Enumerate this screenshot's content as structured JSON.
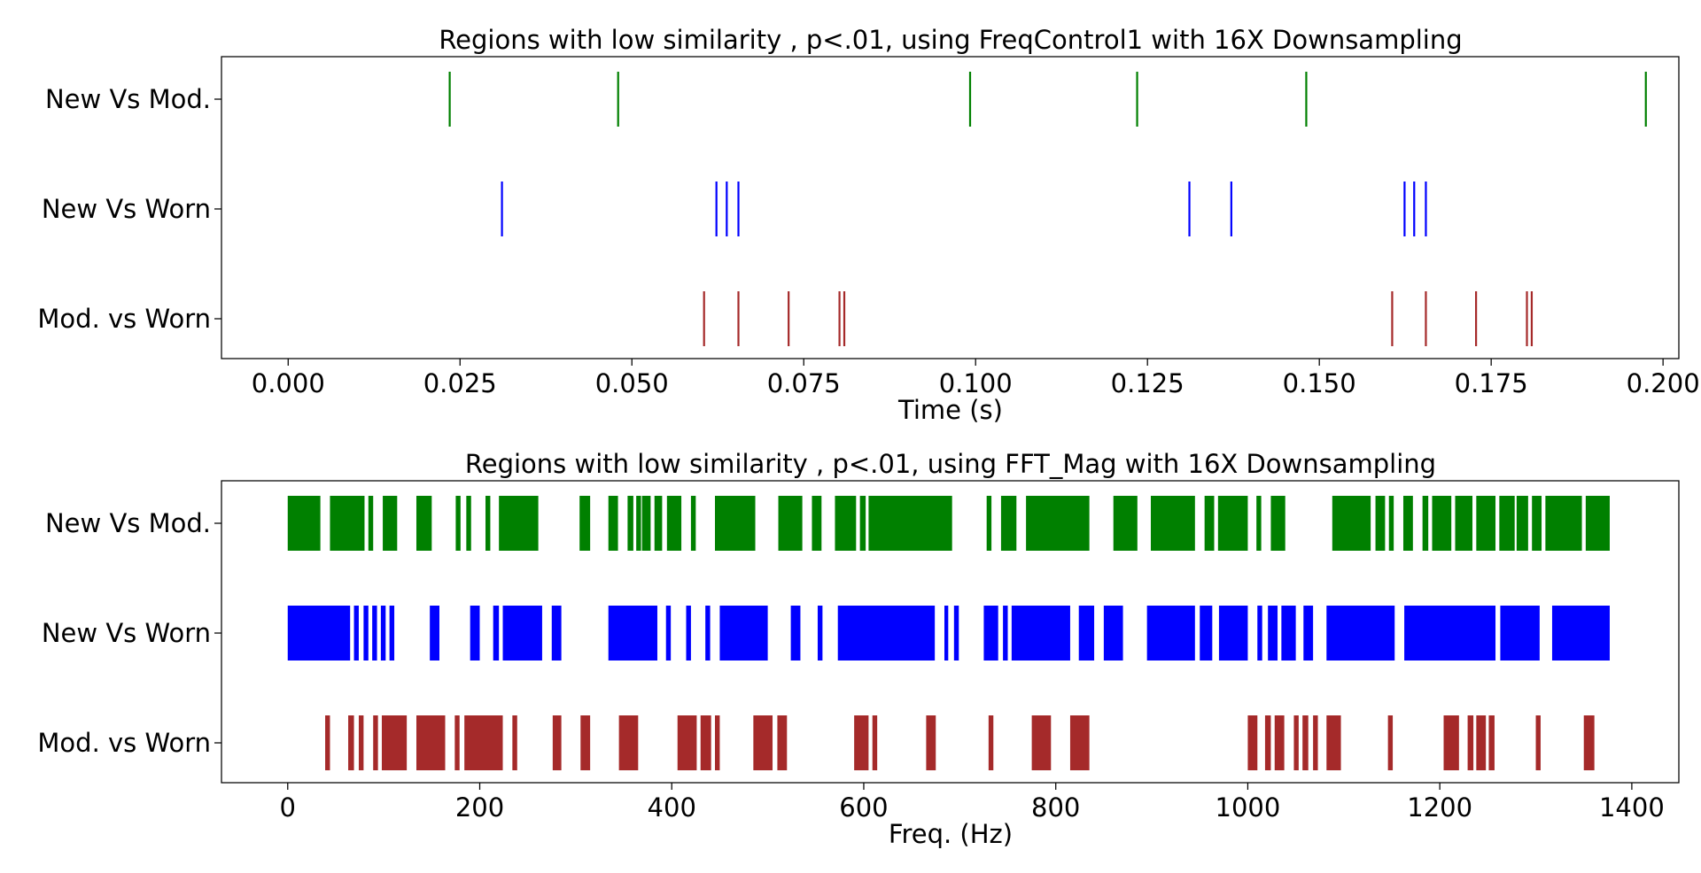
{
  "chart_data": [
    {
      "type": "eventplot",
      "title": "Regions with low similarity , p<.01, using FreqControl1 with 16X Downsampling",
      "xlabel": "Time (s)",
      "xlim": [
        -0.0097,
        0.2023
      ],
      "xticks": [
        0.0,
        0.025,
        0.05,
        0.075,
        0.1,
        0.125,
        0.15,
        0.175,
        0.2
      ],
      "xtick_labels": [
        "0.000",
        "0.025",
        "0.050",
        "0.075",
        "0.100",
        "0.125",
        "0.150",
        "0.175",
        "0.200"
      ],
      "series": [
        {
          "name": "New Vs Mod.",
          "color": "#008000",
          "events": [
            0.0235,
            0.048,
            0.0992,
            0.1235,
            0.1481,
            0.1975
          ]
        },
        {
          "name": "New Vs Worn",
          "color": "#0000ff",
          "events": [
            0.0311,
            0.0623,
            0.0638,
            0.0655,
            0.1311,
            0.1372,
            0.1624,
            0.1638,
            0.1655
          ]
        },
        {
          "name": "Mod. vs Worn",
          "color": "#a52a2a",
          "events": [
            0.0605,
            0.0655,
            0.0728,
            0.0802,
            0.0809,
            0.1606,
            0.1655,
            0.1728,
            0.1802,
            0.1809
          ]
        }
      ]
    },
    {
      "type": "broken_barh",
      "title": "Regions with low similarity , p<.01, using FFT_Mag with 16X Downsampling",
      "xlabel": "Freq. (Hz)",
      "xlim": [
        -69,
        1449
      ],
      "xticks": [
        0,
        200,
        400,
        600,
        800,
        1000,
        1200,
        1400
      ],
      "xtick_labels": [
        "0",
        "200",
        "400",
        "600",
        "800",
        "1000",
        "1200",
        "1400"
      ],
      "series": [
        {
          "name": "New Vs Mod.",
          "color": "#008000",
          "intervals": [
            [
              0,
              34
            ],
            [
              44,
              80
            ],
            [
              84,
              89
            ],
            [
              99,
              114
            ],
            [
              134,
              150
            ],
            [
              175,
              180
            ],
            [
              186,
              191
            ],
            [
              206,
              211
            ],
            [
              220,
              261
            ],
            [
              304,
              315
            ],
            [
              334,
              344
            ],
            [
              354,
              360
            ],
            [
              363,
              368
            ],
            [
              369,
              378
            ],
            [
              382,
              390
            ],
            [
              395,
              410
            ],
            [
              420,
              425
            ],
            [
              445,
              487
            ],
            [
              511,
              536
            ],
            [
              546,
              556
            ],
            [
              570,
              592
            ],
            [
              596,
              602
            ],
            [
              605,
              692
            ],
            [
              728,
              733
            ],
            [
              743,
              759
            ],
            [
              769,
              835
            ],
            [
              860,
              885
            ],
            [
              899,
              945
            ],
            [
              955,
              965
            ],
            [
              969,
              1000
            ],
            [
              1009,
              1014
            ],
            [
              1024,
              1039
            ],
            [
              1088,
              1128
            ],
            [
              1133,
              1143
            ],
            [
              1147,
              1152
            ],
            [
              1162,
              1172
            ],
            [
              1182,
              1188
            ],
            [
              1192,
              1212
            ],
            [
              1216,
              1234
            ],
            [
              1238,
              1258
            ],
            [
              1262,
              1278
            ],
            [
              1280,
              1292
            ],
            [
              1296,
              1306
            ],
            [
              1310,
              1348
            ],
            [
              1352,
              1377
            ]
          ]
        },
        {
          "name": "New Vs Worn",
          "color": "#0000ff",
          "intervals": [
            [
              0,
              65
            ],
            [
              69,
              74
            ],
            [
              79,
              84
            ],
            [
              88,
              93
            ],
            [
              97,
              102
            ],
            [
              106,
              111
            ],
            [
              148,
              158
            ],
            [
              190,
              200
            ],
            [
              214,
              220
            ],
            [
              224,
              265
            ],
            [
              275,
              285
            ],
            [
              334,
              385
            ],
            [
              394,
              399
            ],
            [
              415,
              420
            ],
            [
              435,
              440
            ],
            [
              450,
              500
            ],
            [
              524,
              534
            ],
            [
              552,
              557
            ],
            [
              573,
              674
            ],
            [
              684,
              688
            ],
            [
              694,
              699
            ],
            [
              725,
              740
            ],
            [
              745,
              750
            ],
            [
              754,
              815
            ],
            [
              824,
              840
            ],
            [
              850,
              870
            ],
            [
              895,
              945
            ],
            [
              950,
              963
            ],
            [
              970,
              1000
            ],
            [
              1010,
              1015
            ],
            [
              1021,
              1031
            ],
            [
              1035,
              1050
            ],
            [
              1058,
              1068
            ],
            [
              1082,
              1153
            ],
            [
              1163,
              1258
            ],
            [
              1263,
              1304
            ],
            [
              1317,
              1377
            ]
          ]
        },
        {
          "name": "Mod. vs Worn",
          "color": "#a52a2a",
          "intervals": [
            [
              39,
              44
            ],
            [
              63,
              69
            ],
            [
              74,
              79
            ],
            [
              89,
              94
            ],
            [
              98,
              124
            ],
            [
              134,
              164
            ],
            [
              174,
              179
            ],
            [
              184,
              224
            ],
            [
              234,
              239
            ],
            [
              276,
              285
            ],
            [
              305,
              315
            ],
            [
              345,
              365
            ],
            [
              406,
              426
            ],
            [
              430,
              441
            ],
            [
              445,
              450
            ],
            [
              485,
              505
            ],
            [
              510,
              520
            ],
            [
              590,
              605
            ],
            [
              609,
              614
            ],
            [
              665,
              675
            ],
            [
              730,
              735
            ],
            [
              775,
              795
            ],
            [
              815,
              835
            ],
            [
              1000,
              1010
            ],
            [
              1018,
              1024
            ],
            [
              1028,
              1038
            ],
            [
              1048,
              1053
            ],
            [
              1057,
              1063
            ],
            [
              1068,
              1073
            ],
            [
              1082,
              1097
            ],
            [
              1146,
              1151
            ],
            [
              1204,
              1220
            ],
            [
              1229,
              1235
            ],
            [
              1238,
              1248
            ],
            [
              1251,
              1257
            ],
            [
              1300,
              1305
            ],
            [
              1350,
              1361
            ]
          ]
        }
      ]
    }
  ]
}
